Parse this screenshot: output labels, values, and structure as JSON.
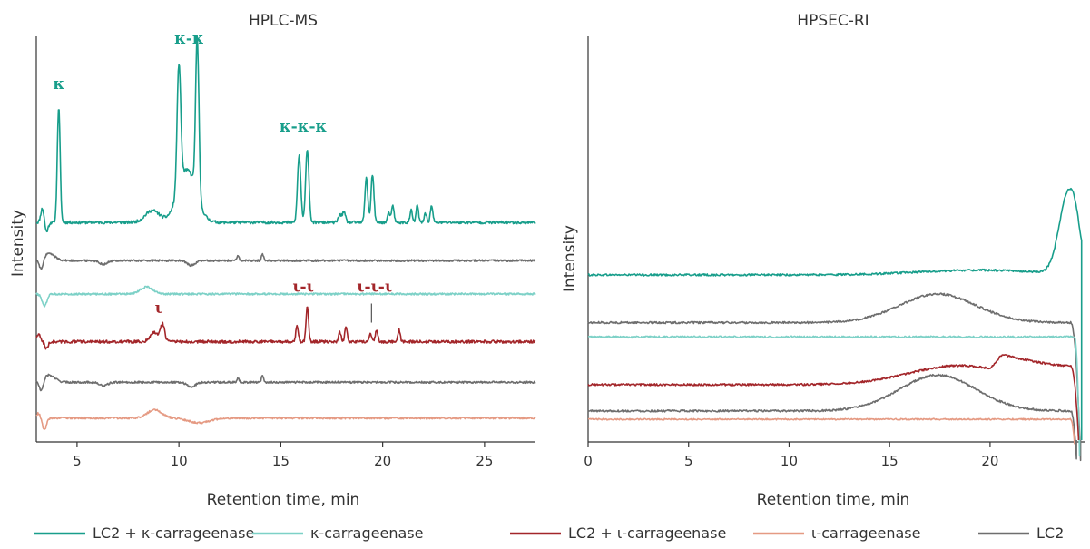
{
  "colors": {
    "lc2_kappa": "#189e8b",
    "kappa": "#7dd1c7",
    "lc2_iota": "#a3262a",
    "iota": "#e59a83",
    "lc2": "#6e6e6e",
    "axis": "#333333"
  },
  "chart_data": [
    {
      "type": "line",
      "title": "HPLC-MS",
      "xlabel": "Retention time, min",
      "ylabel": "Intensity",
      "xlim": [
        3,
        27.5
      ],
      "x_ticks": [
        "5",
        "10",
        "15",
        "20",
        "25"
      ],
      "y_ticks": [],
      "grid": false,
      "series": [
        {
          "name": "LC2 + κ-carrageenase",
          "color_key": "lc2_kappa",
          "baseline": 0.92,
          "noise": 0.006,
          "peaks": [
            [
              3.3,
              0.06,
              0.08
            ],
            [
              4.1,
              0.48,
              0.07
            ],
            [
              8.7,
              0.05,
              0.35
            ],
            [
              10.0,
              0.52,
              0.09
            ],
            [
              10.4,
              0.22,
              0.45
            ],
            [
              10.9,
              0.66,
              0.08
            ],
            [
              15.9,
              0.28,
              0.08
            ],
            [
              16.3,
              0.31,
              0.08
            ],
            [
              17.9,
              0.03,
              0.08
            ],
            [
              18.1,
              0.04,
              0.08
            ],
            [
              19.2,
              0.19,
              0.07
            ],
            [
              19.5,
              0.2,
              0.07
            ],
            [
              20.3,
              0.04,
              0.06
            ],
            [
              20.5,
              0.07,
              0.06
            ],
            [
              21.4,
              0.05,
              0.06
            ],
            [
              21.7,
              0.07,
              0.06
            ],
            [
              22.1,
              0.04,
              0.06
            ],
            [
              22.4,
              0.07,
              0.06
            ]
          ],
          "dips": [
            [
              3.5,
              0.04,
              0.08
            ]
          ]
        },
        {
          "name": "LC2",
          "color_key": "lc2",
          "baseline": 0.76,
          "noise": 0.004,
          "peaks": [
            [
              3.6,
              0.03,
              0.3
            ],
            [
              12.9,
              0.02,
              0.05
            ],
            [
              14.1,
              0.03,
              0.05
            ]
          ],
          "dips": [
            [
              3.25,
              0.05,
              0.1
            ],
            [
              6.3,
              0.015,
              0.2
            ],
            [
              10.6,
              0.02,
              0.2
            ]
          ]
        },
        {
          "name": "κ-carrageenase",
          "color_key": "kappa",
          "baseline": 0.62,
          "noise": 0.004,
          "peaks": [
            [
              8.4,
              0.03,
              0.3
            ]
          ],
          "dips": [
            [
              3.4,
              0.05,
              0.12
            ]
          ]
        },
        {
          "name": "LC2 + ι-carrageenase",
          "color_key": "lc2_iota",
          "baseline": 0.42,
          "noise": 0.006,
          "peaks": [
            [
              3.1,
              0.03,
              0.1
            ],
            [
              8.8,
              0.04,
              0.2
            ],
            [
              9.2,
              0.07,
              0.1
            ],
            [
              15.8,
              0.07,
              0.06
            ],
            [
              16.3,
              0.15,
              0.06
            ],
            [
              17.9,
              0.04,
              0.06
            ],
            [
              18.2,
              0.06,
              0.06
            ],
            [
              19.4,
              0.03,
              0.06
            ],
            [
              19.7,
              0.05,
              0.06
            ],
            [
              20.8,
              0.05,
              0.06
            ]
          ],
          "dips": [
            [
              3.5,
              0.03,
              0.08
            ]
          ]
        },
        {
          "name": "LC2",
          "color_key": "lc2",
          "baseline": 0.25,
          "noise": 0.004,
          "peaks": [
            [
              3.6,
              0.03,
              0.3
            ],
            [
              12.9,
              0.02,
              0.05
            ],
            [
              14.1,
              0.03,
              0.05
            ]
          ],
          "dips": [
            [
              3.25,
              0.05,
              0.1
            ],
            [
              6.3,
              0.015,
              0.2
            ],
            [
              10.6,
              0.02,
              0.2
            ]
          ]
        },
        {
          "name": "ι-carrageenase",
          "color_key": "iota",
          "baseline": 0.1,
          "noise": 0.004,
          "peaks": [
            [
              3.1,
              0.02,
              0.1
            ],
            [
              8.8,
              0.035,
              0.35
            ]
          ],
          "dips": [
            [
              3.4,
              0.05,
              0.1
            ],
            [
              11.0,
              0.02,
              0.5
            ]
          ]
        }
      ],
      "annotations": [
        {
          "text": "κ",
          "x": 4.1,
          "y": 1.48,
          "color_key": "lc2_kappa"
        },
        {
          "text": "κ-κ",
          "x": 10.5,
          "y": 1.67,
          "color_key": "lc2_kappa"
        },
        {
          "text": "κ-κ-κ",
          "x": 16.1,
          "y": 1.3,
          "color_key": "lc2_kappa"
        },
        {
          "text": "ι",
          "x": 9.0,
          "y": 0.54,
          "color_key": "lc2_iota"
        },
        {
          "text": "ι-ι",
          "x": 16.1,
          "y": 0.63,
          "color_key": "lc2_iota"
        },
        {
          "text": "ι-ι-ι",
          "x": 19.6,
          "y": 0.63,
          "color_key": "lc2_iota"
        }
      ]
    },
    {
      "type": "line",
      "title": "HPSEC-RI",
      "xlabel": "Retention time, min",
      "ylabel": "Intensity",
      "xlim": [
        0,
        24.7
      ],
      "x_ticks": [
        "0",
        "5",
        "10",
        "15",
        "20"
      ],
      "y_ticks": [],
      "grid": false,
      "series": [
        {
          "name": "LC2 + κ-carrageenase",
          "color_key": "lc2_kappa",
          "baseline": 0.7,
          "noise": 0.004,
          "end": 24.55,
          "bumps": [
            [
              19.5,
              0.02,
              3.0
            ],
            [
              23.9,
              0.34,
              0.45
            ],
            [
              24.25,
              0.05,
              0.2
            ]
          ],
          "tail": 0.55
        },
        {
          "name": "LC2",
          "color_key": "lc2",
          "baseline": 0.5,
          "noise": 0.004,
          "end": 24.5,
          "bumps": [
            [
              17.4,
              0.12,
              1.9
            ]
          ],
          "tail": 0.58,
          "cutoff": 24.0
        },
        {
          "name": "κ-carrageenase",
          "color_key": "kappa",
          "baseline": 0.44,
          "noise": 0.004,
          "end": 24.45,
          "bumps": [],
          "tail": 0.5,
          "cutoff": 24.2
        },
        {
          "name": "LC2 + ι-carrageenase",
          "color_key": "lc2_iota",
          "baseline": 0.24,
          "noise": 0.004,
          "end": 24.4,
          "bumps": [
            [
              18.5,
              0.08,
              2.5
            ]
          ],
          "tail": 0.3,
          "cutoff": 24.0,
          "plateau": [
            20.0,
            24.0,
            0.07
          ]
        },
        {
          "name": "LC2",
          "color_key": "lc2",
          "baseline": 0.13,
          "noise": 0.004,
          "end": 24.3,
          "bumps": [
            [
              17.4,
              0.15,
              1.9
            ]
          ],
          "tail": 0.2,
          "cutoff": 24.0
        },
        {
          "name": "ι-carrageenase",
          "color_key": "iota",
          "baseline": 0.095,
          "noise": 0.003,
          "end": 24.2,
          "bumps": [],
          "tail": 0.1,
          "cutoff": 24.0
        }
      ],
      "annotations": []
    }
  ],
  "legend": [
    {
      "label": "LC2 + κ-carrageenase",
      "color_key": "lc2_kappa"
    },
    {
      "label": "κ-carrageenase",
      "color_key": "kappa"
    },
    {
      "label": "LC2 + ι-carrageenase",
      "color_key": "lc2_iota"
    },
    {
      "label": "ι-carrageenase",
      "color_key": "iota"
    },
    {
      "label": "LC2",
      "color_key": "lc2"
    }
  ]
}
